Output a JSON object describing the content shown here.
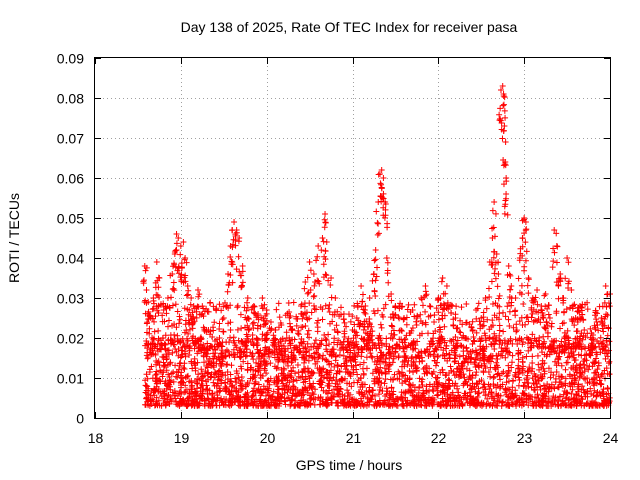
{
  "chart_data": {
    "type": "scatter",
    "title": "Day 138 of 2025, Rate Of TEC Index for receiver pasa",
    "xlabel": "GPS time / hours",
    "ylabel": "ROTI / TECUs",
    "xlim": [
      18,
      24
    ],
    "ylim": [
      0,
      0.09
    ],
    "x_ticks": [
      18,
      19,
      20,
      21,
      22,
      23,
      24
    ],
    "x_tick_labels": [
      "18",
      "19",
      "20",
      "21",
      "22",
      "23",
      "24"
    ],
    "y_ticks": [
      0,
      0.01,
      0.02,
      0.03,
      0.04,
      0.05,
      0.06,
      0.07,
      0.08,
      0.09
    ],
    "y_tick_labels": [
      "0",
      "0.01",
      "0.02",
      "0.03",
      "0.04",
      "0.05",
      "0.06",
      "0.07",
      "0.08",
      "0.09"
    ],
    "grid": true,
    "marker": "+",
    "color": "#ff0000",
    "series": [
      {
        "name": "ROTI",
        "points": [
          [
            18.58,
            0.038
          ],
          [
            18.6,
            0.032
          ],
          [
            18.62,
            0.029
          ],
          [
            18.65,
            0.025
          ],
          [
            18.68,
            0.03
          ],
          [
            18.72,
            0.039
          ],
          [
            18.75,
            0.035
          ],
          [
            18.8,
            0.027
          ],
          [
            18.85,
            0.03
          ],
          [
            18.9,
            0.036
          ],
          [
            18.93,
            0.041
          ],
          [
            18.95,
            0.046
          ],
          [
            18.97,
            0.045
          ],
          [
            19.0,
            0.043
          ],
          [
            19.03,
            0.044
          ],
          [
            19.05,
            0.04
          ],
          [
            19.08,
            0.033
          ],
          [
            19.12,
            0.03
          ],
          [
            19.15,
            0.028
          ],
          [
            19.2,
            0.032
          ],
          [
            19.25,
            0.026
          ],
          [
            19.3,
            0.022
          ],
          [
            19.35,
            0.018
          ],
          [
            19.4,
            0.017
          ],
          [
            19.45,
            0.02
          ],
          [
            19.5,
            0.025
          ],
          [
            19.55,
            0.036
          ],
          [
            19.58,
            0.043
          ],
          [
            19.6,
            0.047
          ],
          [
            19.62,
            0.049
          ],
          [
            19.65,
            0.047
          ],
          [
            19.68,
            0.045
          ],
          [
            19.72,
            0.038
          ],
          [
            19.78,
            0.03
          ],
          [
            19.85,
            0.028
          ],
          [
            19.9,
            0.026
          ],
          [
            19.95,
            0.03
          ],
          [
            20.0,
            0.027
          ],
          [
            20.05,
            0.024
          ],
          [
            20.1,
            0.022
          ],
          [
            20.2,
            0.018
          ],
          [
            20.3,
            0.022
          ],
          [
            20.4,
            0.028
          ],
          [
            20.45,
            0.034
          ],
          [
            20.5,
            0.039
          ],
          [
            20.55,
            0.036
          ],
          [
            20.6,
            0.043
          ],
          [
            20.65,
            0.045
          ],
          [
            20.68,
            0.051
          ],
          [
            20.7,
            0.044
          ],
          [
            20.75,
            0.035
          ],
          [
            20.8,
            0.03
          ],
          [
            20.9,
            0.026
          ],
          [
            21.0,
            0.022
          ],
          [
            21.05,
            0.025
          ],
          [
            21.1,
            0.033
          ],
          [
            21.15,
            0.028
          ],
          [
            21.2,
            0.03
          ],
          [
            21.25,
            0.036
          ],
          [
            21.27,
            0.042
          ],
          [
            21.3,
            0.054
          ],
          [
            21.32,
            0.061
          ],
          [
            21.34,
            0.062
          ],
          [
            21.36,
            0.06
          ],
          [
            21.38,
            0.054
          ],
          [
            21.4,
            0.04
          ],
          [
            21.45,
            0.031
          ],
          [
            21.5,
            0.028
          ],
          [
            21.6,
            0.025
          ],
          [
            21.7,
            0.027
          ],
          [
            21.75,
            0.025
          ],
          [
            21.8,
            0.03
          ],
          [
            21.85,
            0.033
          ],
          [
            21.9,
            0.028
          ],
          [
            21.95,
            0.024
          ],
          [
            22.0,
            0.03
          ],
          [
            22.05,
            0.035
          ],
          [
            22.1,
            0.033
          ],
          [
            22.15,
            0.028
          ],
          [
            22.2,
            0.025
          ],
          [
            22.3,
            0.02
          ],
          [
            22.4,
            0.022
          ],
          [
            22.5,
            0.025
          ],
          [
            22.55,
            0.03
          ],
          [
            22.6,
            0.039
          ],
          [
            22.63,
            0.045
          ],
          [
            22.65,
            0.054
          ],
          [
            22.68,
            0.041
          ],
          [
            22.7,
            0.036
          ],
          [
            22.73,
            0.082
          ],
          [
            22.75,
            0.083
          ],
          [
            22.76,
            0.081
          ],
          [
            22.77,
            0.073
          ],
          [
            22.78,
            0.064
          ],
          [
            22.79,
            0.06
          ],
          [
            22.82,
            0.038
          ],
          [
            22.85,
            0.033
          ],
          [
            22.9,
            0.03
          ],
          [
            22.95,
            0.04
          ],
          [
            22.98,
            0.045
          ],
          [
            23.0,
            0.05
          ],
          [
            23.02,
            0.049
          ],
          [
            23.05,
            0.035
          ],
          [
            23.1,
            0.03
          ],
          [
            23.15,
            0.032
          ],
          [
            23.2,
            0.028
          ],
          [
            23.25,
            0.031
          ],
          [
            23.3,
            0.025
          ],
          [
            23.35,
            0.047
          ],
          [
            23.38,
            0.043
          ],
          [
            23.42,
            0.036
          ],
          [
            23.45,
            0.03
          ],
          [
            23.5,
            0.04
          ],
          [
            23.55,
            0.032
          ],
          [
            23.6,
            0.025
          ],
          [
            23.65,
            0.028
          ],
          [
            23.7,
            0.022
          ],
          [
            23.8,
            0.02
          ],
          [
            23.9,
            0.025
          ],
          [
            23.95,
            0.033
          ],
          [
            24.0,
            0.031
          ]
        ],
        "baseline_range": [
          0.003,
          0.02
        ],
        "x_range": [
          18.58,
          24.0
        ]
      }
    ]
  }
}
